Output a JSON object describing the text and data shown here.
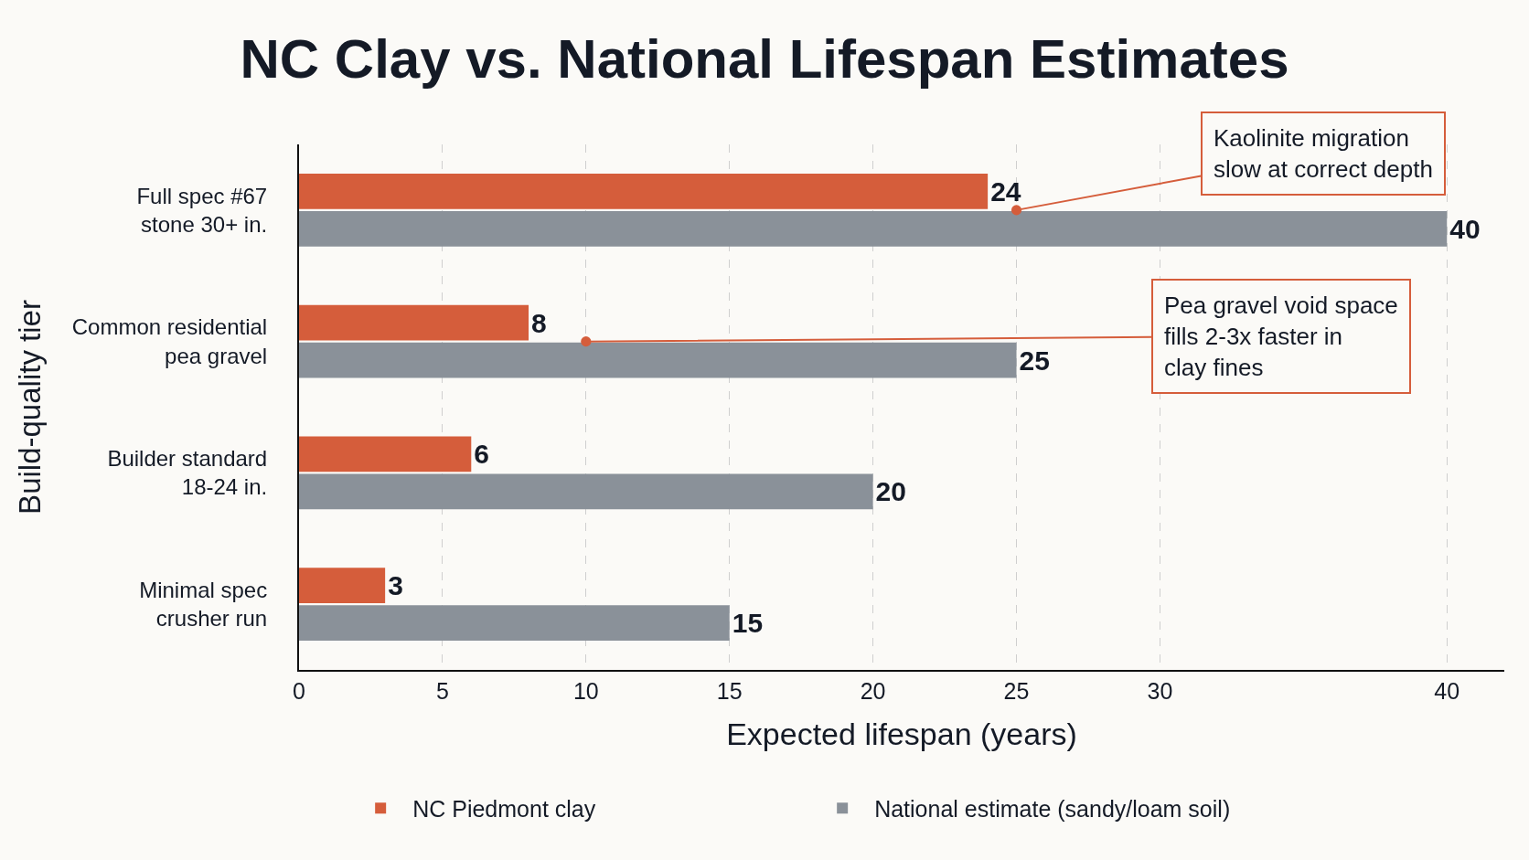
{
  "chart_data": {
    "type": "bar",
    "orientation": "horizontal",
    "title": "NC Clay vs. National Lifespan Estimates",
    "xlabel": "Expected lifespan (years)",
    "ylabel": "Build-quality tier",
    "categories": [
      "Full spec #67 stone 30+ in.",
      "Common residential pea gravel",
      "Builder standard 18-24 in.",
      "Minimal spec crusher run"
    ],
    "series": [
      {
        "name": "NC Piedmont clay",
        "color": "#d55d3b",
        "values": [
          24,
          8,
          6,
          3
        ]
      },
      {
        "name": "National estimate (sandy/loam soil)",
        "color": "#8a9199",
        "values": [
          40,
          25,
          20,
          15
        ]
      }
    ],
    "xlim": [
      0,
      42
    ],
    "xticks": [
      0,
      5,
      10,
      15,
      20,
      25,
      30,
      40
    ],
    "grid": "x",
    "legend": "bottom",
    "data_labels": true,
    "annotations": [
      {
        "text": "Kaolinite migration slow at correct depth",
        "x": 25,
        "y": "Full spec #67 stone 30+ in."
      },
      {
        "text": "Pea gravel void space fills 2-3x faster in clay fines",
        "x": 10,
        "y": "Common residential pea gravel"
      }
    ]
  }
}
